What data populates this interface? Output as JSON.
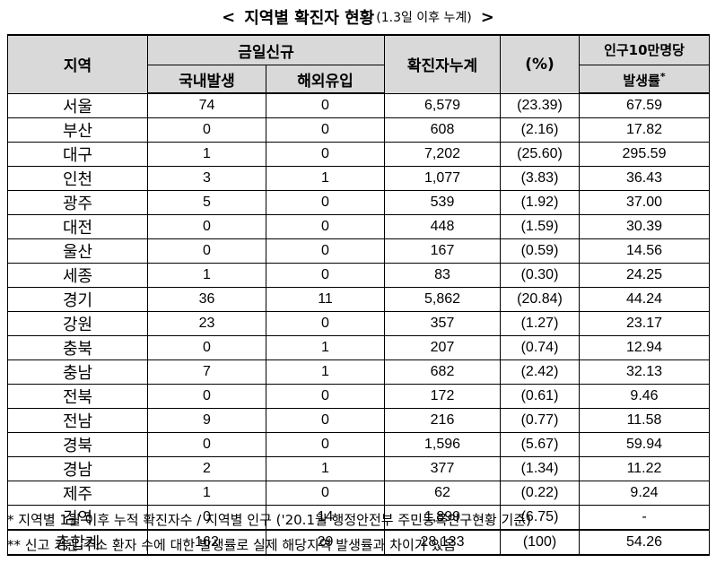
{
  "title": {
    "left_bracket": "<",
    "main": "지역별 확진자 현황",
    "sub": "(1.3일 이후 누계)",
    "right_bracket": ">"
  },
  "headers": {
    "region": "지역",
    "today_new": "금일신규",
    "domestic": "국내발생",
    "overseas": "해외유입",
    "cumulative": "확진자누계",
    "percent": "(%)",
    "rate_line1": "인구10만명당",
    "rate_line2": "발생률*"
  },
  "rows": [
    {
      "region": "서울",
      "domestic": "74",
      "overseas": "0",
      "cumulative": "6,579",
      "percent": "(23.39)",
      "rate": "67.59"
    },
    {
      "region": "부산",
      "domestic": "0",
      "overseas": "0",
      "cumulative": "608",
      "percent": "(2.16)",
      "rate": "17.82"
    },
    {
      "region": "대구",
      "domestic": "1",
      "overseas": "0",
      "cumulative": "7,202",
      "percent": "(25.60)",
      "rate": "295.59"
    },
    {
      "region": "인천",
      "domestic": "3",
      "overseas": "1",
      "cumulative": "1,077",
      "percent": "(3.83)",
      "rate": "36.43"
    },
    {
      "region": "광주",
      "domestic": "5",
      "overseas": "0",
      "cumulative": "539",
      "percent": "(1.92)",
      "rate": "37.00"
    },
    {
      "region": "대전",
      "domestic": "0",
      "overseas": "0",
      "cumulative": "448",
      "percent": "(1.59)",
      "rate": "30.39"
    },
    {
      "region": "울산",
      "domestic": "0",
      "overseas": "0",
      "cumulative": "167",
      "percent": "(0.59)",
      "rate": "14.56"
    },
    {
      "region": "세종",
      "domestic": "1",
      "overseas": "0",
      "cumulative": "83",
      "percent": "(0.30)",
      "rate": "24.25"
    },
    {
      "region": "경기",
      "domestic": "36",
      "overseas": "11",
      "cumulative": "5,862",
      "percent": "(20.84)",
      "rate": "44.24"
    },
    {
      "region": "강원",
      "domestic": "23",
      "overseas": "0",
      "cumulative": "357",
      "percent": "(1.27)",
      "rate": "23.17"
    },
    {
      "region": "충북",
      "domestic": "0",
      "overseas": "1",
      "cumulative": "207",
      "percent": "(0.74)",
      "rate": "12.94"
    },
    {
      "region": "충남",
      "domestic": "7",
      "overseas": "1",
      "cumulative": "682",
      "percent": "(2.42)",
      "rate": "32.13"
    },
    {
      "region": "전북",
      "domestic": "0",
      "overseas": "0",
      "cumulative": "172",
      "percent": "(0.61)",
      "rate": "9.46"
    },
    {
      "region": "전남",
      "domestic": "9",
      "overseas": "0",
      "cumulative": "216",
      "percent": "(0.77)",
      "rate": "11.58"
    },
    {
      "region": "경북",
      "domestic": "0",
      "overseas": "0",
      "cumulative": "1,596",
      "percent": "(5.67)",
      "rate": "59.94"
    },
    {
      "region": "경남",
      "domestic": "2",
      "overseas": "1",
      "cumulative": "377",
      "percent": "(1.34)",
      "rate": "11.22"
    },
    {
      "region": "제주",
      "domestic": "1",
      "overseas": "0",
      "cumulative": "62",
      "percent": "(0.22)",
      "rate": "9.24"
    },
    {
      "region": "검역",
      "domestic": "0",
      "overseas": "14",
      "cumulative": "1,899",
      "percent": "(6.75)",
      "rate": "-"
    },
    {
      "region": "총합계",
      "domestic": "162",
      "overseas": "29",
      "cumulative": "28,133",
      "percent": "(100)",
      "rate": "54.26"
    }
  ],
  "notes": {
    "note1": " * 지역별 1월 이후 누적 확진자수 / 지역별 인구 ('20.1월 행정안전부 주민등록인구현황 기준)",
    "note2": "** 신고 기관 주소 환자 수에 대한 발생률로 실제 해당지역 발생률과 차이가 있음"
  },
  "colors": {
    "header_bg": "#d9d9d9",
    "border": "#000000"
  }
}
